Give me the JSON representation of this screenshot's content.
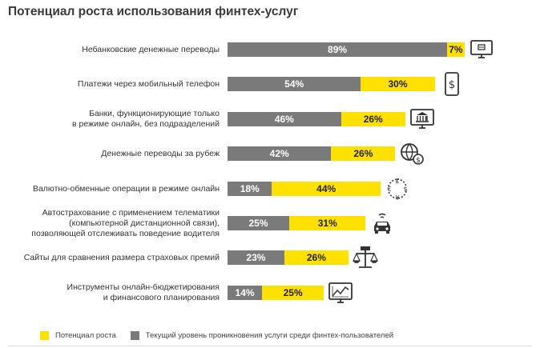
{
  "title": "Потенциал роста использования финтех-услуг",
  "legend": {
    "potential": "Потенциал роста",
    "current": "Текущий уровень проникновения услуги среди финтех-пользователей"
  },
  "colors": {
    "current": "#7a7a7a",
    "potential": "#ffe100"
  },
  "chart_data": {
    "type": "bar",
    "orientation": "horizontal",
    "stacked": true,
    "title": "Потенциал роста использования финтех-услуг",
    "categories": [
      "Небанковские  денежные переводы",
      "Платежи через мобильный телефон",
      "Банки, функционирующие только в режиме онлайн, без подразделений",
      "Денежные переводы за рубеж",
      "Валютно-обменные операции в режиме онлайн",
      "Автострахование с применением телематики (компьютерной дистанционной связи), позволяющей отслеживать поведение водителя",
      "Сайты для сравнения размера страховых премий",
      "Инструменты онлайн-бюджетирования и финансового планирования"
    ],
    "category_lines": [
      [
        "Небанковские  денежные переводы"
      ],
      [
        "Платежи через мобильный телефон"
      ],
      [
        "Банки, функционирующие только",
        "в режиме онлайн, без подразделений"
      ],
      [
        "Денежные переводы за рубеж"
      ],
      [
        "Валютно-обменные операции в режиме онлайн"
      ],
      [
        "Автострахование с применением телематики",
        "(компьютерной дистанционной связи),",
        "позволяющей отслеживать поведение водителя"
      ],
      [
        "Сайты для сравнения размера страховых премий"
      ],
      [
        "Инструменты онлайн-бюджетирования",
        "и финансового планирования"
      ]
    ],
    "series": [
      {
        "name": "Текущий уровень проникновения услуги среди финтех-пользователей",
        "values": [
          89,
          54,
          46,
          42,
          18,
          25,
          23,
          14
        ]
      },
      {
        "name": "Потенциал роста",
        "values": [
          7,
          30,
          26,
          26,
          44,
          31,
          26,
          25
        ]
      }
    ],
    "value_labels": {
      "current": [
        "89%",
        "54%",
        "46%",
        "42%",
        "18%",
        "25%",
        "23%",
        "14%"
      ],
      "potential": [
        "7%",
        "30%",
        "26%",
        "26%",
        "44%",
        "31%",
        "26%",
        "25%"
      ]
    },
    "icons": [
      "computer-payment-icon",
      "smartphone-dollar-icon",
      "online-bank-icon",
      "globe-dollar-icon",
      "currency-exchange-icon",
      "car-telematics-icon",
      "scales-icon",
      "chart-monitor-icon"
    ],
    "xlim": [
      0,
      100
    ],
    "legend_position": "bottom"
  }
}
